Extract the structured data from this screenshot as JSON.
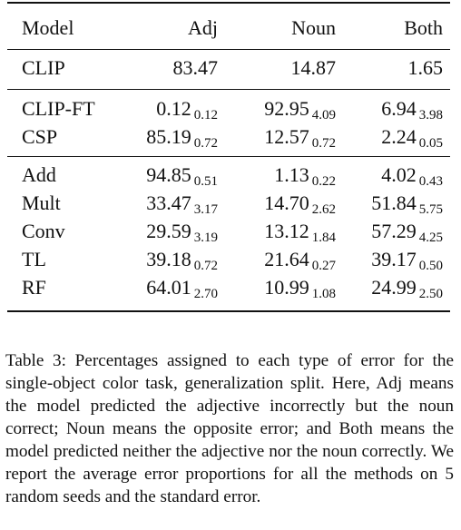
{
  "table": {
    "columns": [
      "Model",
      "Adj",
      "Noun",
      "Both"
    ],
    "groups": [
      {
        "rows": [
          {
            "model": "CLIP",
            "adj": "83.47",
            "adj_std": "",
            "noun": "14.87",
            "noun_std": "",
            "both": "1.65",
            "both_std": ""
          }
        ]
      },
      {
        "rows": [
          {
            "model": "CLIP-FT",
            "adj": "0.12",
            "adj_std": "0.12",
            "noun": "92.95",
            "noun_std": "4.09",
            "both": "6.94",
            "both_std": "3.98"
          },
          {
            "model": "CSP",
            "adj": "85.19",
            "adj_std": "0.72",
            "noun": "12.57",
            "noun_std": "0.72",
            "both": "2.24",
            "both_std": "0.05"
          }
        ]
      },
      {
        "rows": [
          {
            "model": "Add",
            "adj": "94.85",
            "adj_std": "0.51",
            "noun": "1.13",
            "noun_std": "0.22",
            "both": "4.02",
            "both_std": "0.43"
          },
          {
            "model": "Mult",
            "adj": "33.47",
            "adj_std": "3.17",
            "noun": "14.70",
            "noun_std": "2.62",
            "both": "51.84",
            "both_std": "5.75"
          },
          {
            "model": "Conv",
            "adj": "29.59",
            "adj_std": "3.19",
            "noun": "13.12",
            "noun_std": "1.84",
            "both": "57.29",
            "both_std": "4.25"
          },
          {
            "model": "TL",
            "adj": "39.18",
            "adj_std": "0.72",
            "noun": "21.64",
            "noun_std": "0.27",
            "both": "39.17",
            "both_std": "0.50"
          },
          {
            "model": "RF",
            "adj": "64.01",
            "adj_std": "2.70",
            "noun": "10.99",
            "noun_std": "1.08",
            "both": "24.99",
            "both_std": "2.50"
          }
        ]
      }
    ]
  },
  "caption": "Table 3: Percentages assigned to each type of error for the single-object color task, generalization split. Here, Adj means the model predicted the adjective incorrectly but the noun correct; Noun means the opposite error; and Both means the model predicted neither the adjective nor the noun correctly. We report the average error proportions for all the methods on 5 random seeds and the standard error."
}
